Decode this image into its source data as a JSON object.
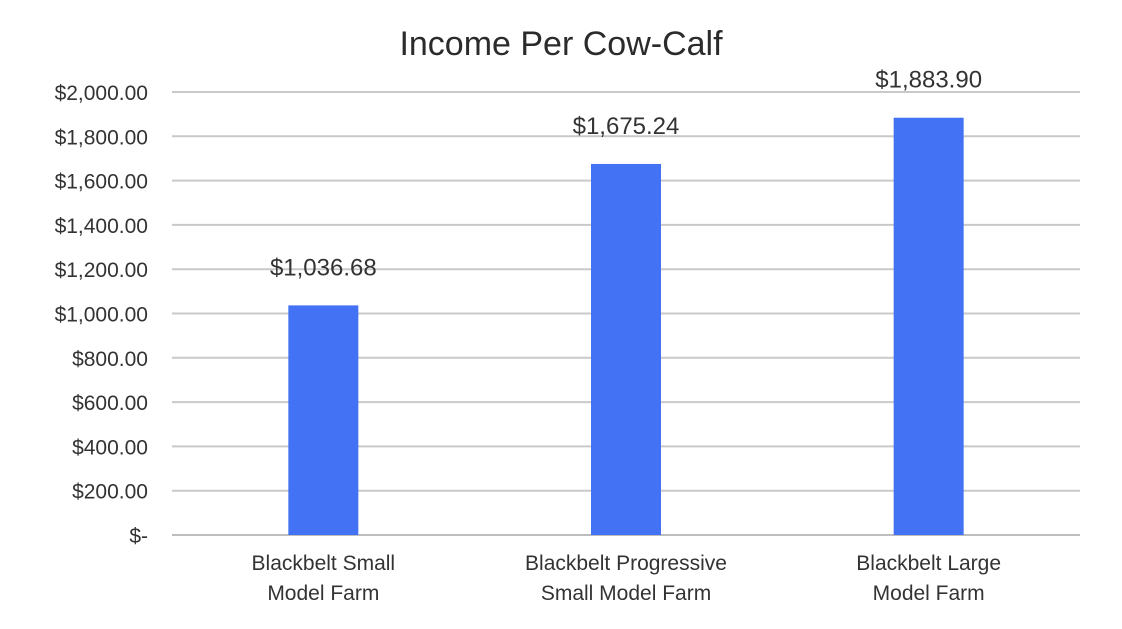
{
  "chart_data": {
    "type": "bar",
    "title": "Income Per Cow-Calf",
    "xlabel": "",
    "ylabel": "",
    "categories": [
      [
        "Blackbelt Small",
        "Model Farm"
      ],
      [
        "Blackbelt Progressive",
        "Small Model Farm"
      ],
      [
        "Blackbelt Large",
        "Model Farm"
      ]
    ],
    "values": [
      1036.68,
      1675.24,
      1883.9
    ],
    "data_labels": [
      "$1,036.68",
      "$1,675.24",
      "$1,883.90"
    ],
    "ylim": [
      0,
      2000
    ],
    "yticks": [
      0,
      200,
      400,
      600,
      800,
      1000,
      1200,
      1400,
      1600,
      1800,
      2000
    ],
    "ytick_labels": [
      "$-",
      "$200.00",
      "$400.00",
      "$600.00",
      "$800.00",
      "$1,000.00",
      "$1,200.00",
      "$1,400.00",
      "$1,600.00",
      "$1,800.00",
      "$2,000.00"
    ],
    "grid": true,
    "legend": "none",
    "bar_color": "#4472f5"
  }
}
